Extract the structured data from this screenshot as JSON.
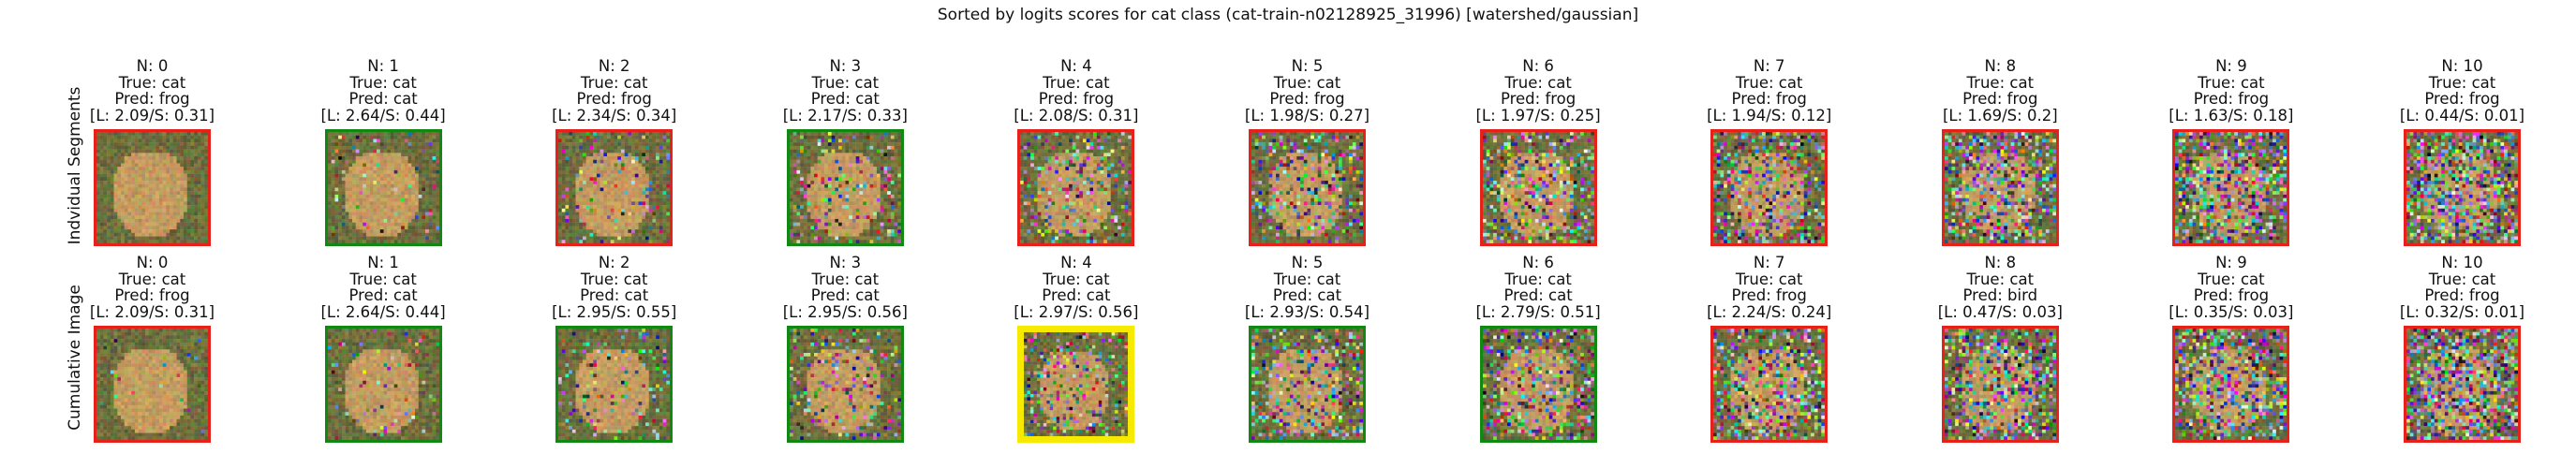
{
  "figure": {
    "title": "Sorted by logits scores for cat class (cat-train-n02128925_31996) [watershed/gaussian]"
  },
  "rows": [
    {
      "label": "Indvidual Segments",
      "cells": [
        {
          "n": "N: 0",
          "true": "True: cat",
          "pred": "Pred: frog",
          "scores": "[L: 2.09/S: 0.31]",
          "border": "#e8201a"
        },
        {
          "n": "N: 1",
          "true": "True: cat",
          "pred": "Pred: cat",
          "scores": "[L: 2.64/S: 0.44]",
          "border": "#118811"
        },
        {
          "n": "N: 2",
          "true": "True: cat",
          "pred": "Pred: frog",
          "scores": "[L: 2.34/S: 0.34]",
          "border": "#e8201a"
        },
        {
          "n": "N: 3",
          "true": "True: cat",
          "pred": "Pred: cat",
          "scores": "[L: 2.17/S: 0.33]",
          "border": "#118811"
        },
        {
          "n": "N: 4",
          "true": "True: cat",
          "pred": "Pred: frog",
          "scores": "[L: 2.08/S: 0.31]",
          "border": "#e8201a"
        },
        {
          "n": "N: 5",
          "true": "True: cat",
          "pred": "Pred: frog",
          "scores": "[L: 1.98/S: 0.27]",
          "border": "#e8201a"
        },
        {
          "n": "N: 6",
          "true": "True: cat",
          "pred": "Pred: frog",
          "scores": "[L: 1.97/S: 0.25]",
          "border": "#e8201a"
        },
        {
          "n": "N: 7",
          "true": "True: cat",
          "pred": "Pred: frog",
          "scores": "[L: 1.94/S: 0.12]",
          "border": "#e8201a"
        },
        {
          "n": "N: 8",
          "true": "True: cat",
          "pred": "Pred: frog",
          "scores": "[L: 1.69/S: 0.2]",
          "border": "#e8201a"
        },
        {
          "n": "N: 9",
          "true": "True: cat",
          "pred": "Pred: frog",
          "scores": "[L: 1.63/S: 0.18]",
          "border": "#e8201a"
        },
        {
          "n": "N: 10",
          "true": "True: cat",
          "pred": "Pred: frog",
          "scores": "[L: 0.44/S: 0.01]",
          "border": "#e8201a"
        }
      ]
    },
    {
      "label": "Cumulative Image",
      "cells": [
        {
          "n": "N: 0",
          "true": "True: cat",
          "pred": "Pred: frog",
          "scores": "[L: 2.09/S: 0.31]",
          "border": "#e8201a"
        },
        {
          "n": "N: 1",
          "true": "True: cat",
          "pred": "Pred: cat",
          "scores": "[L: 2.64/S: 0.44]",
          "border": "#118811"
        },
        {
          "n": "N: 2",
          "true": "True: cat",
          "pred": "Pred: cat",
          "scores": "[L: 2.95/S: 0.55]",
          "border": "#118811"
        },
        {
          "n": "N: 3",
          "true": "True: cat",
          "pred": "Pred: cat",
          "scores": "[L: 2.95/S: 0.56]",
          "border": "#118811"
        },
        {
          "n": "N: 4",
          "true": "True: cat",
          "pred": "Pred: cat",
          "scores": "[L: 2.97/S: 0.56]",
          "border": "#f5ea00"
        },
        {
          "n": "N: 5",
          "true": "True: cat",
          "pred": "Pred: cat",
          "scores": "[L: 2.93/S: 0.54]",
          "border": "#118811"
        },
        {
          "n": "N: 6",
          "true": "True: cat",
          "pred": "Pred: cat",
          "scores": "[L: 2.79/S: 0.51]",
          "border": "#118811"
        },
        {
          "n": "N: 7",
          "true": "True: cat",
          "pred": "Pred: frog",
          "scores": "[L: 2.24/S: 0.24]",
          "border": "#e8201a"
        },
        {
          "n": "N: 8",
          "true": "True: cat",
          "pred": "Pred: bird",
          "scores": "[L: 0.47/S: 0.03]",
          "border": "#e8201a"
        },
        {
          "n": "N: 9",
          "true": "True: cat",
          "pred": "Pred: frog",
          "scores": "[L: 0.35/S: 0.03]",
          "border": "#e8201a"
        },
        {
          "n": "N: 10",
          "true": "True: cat",
          "pred": "Pred: frog",
          "scores": "[L: 0.32/S: 0.01]",
          "border": "#e8201a"
        }
      ]
    }
  ]
}
